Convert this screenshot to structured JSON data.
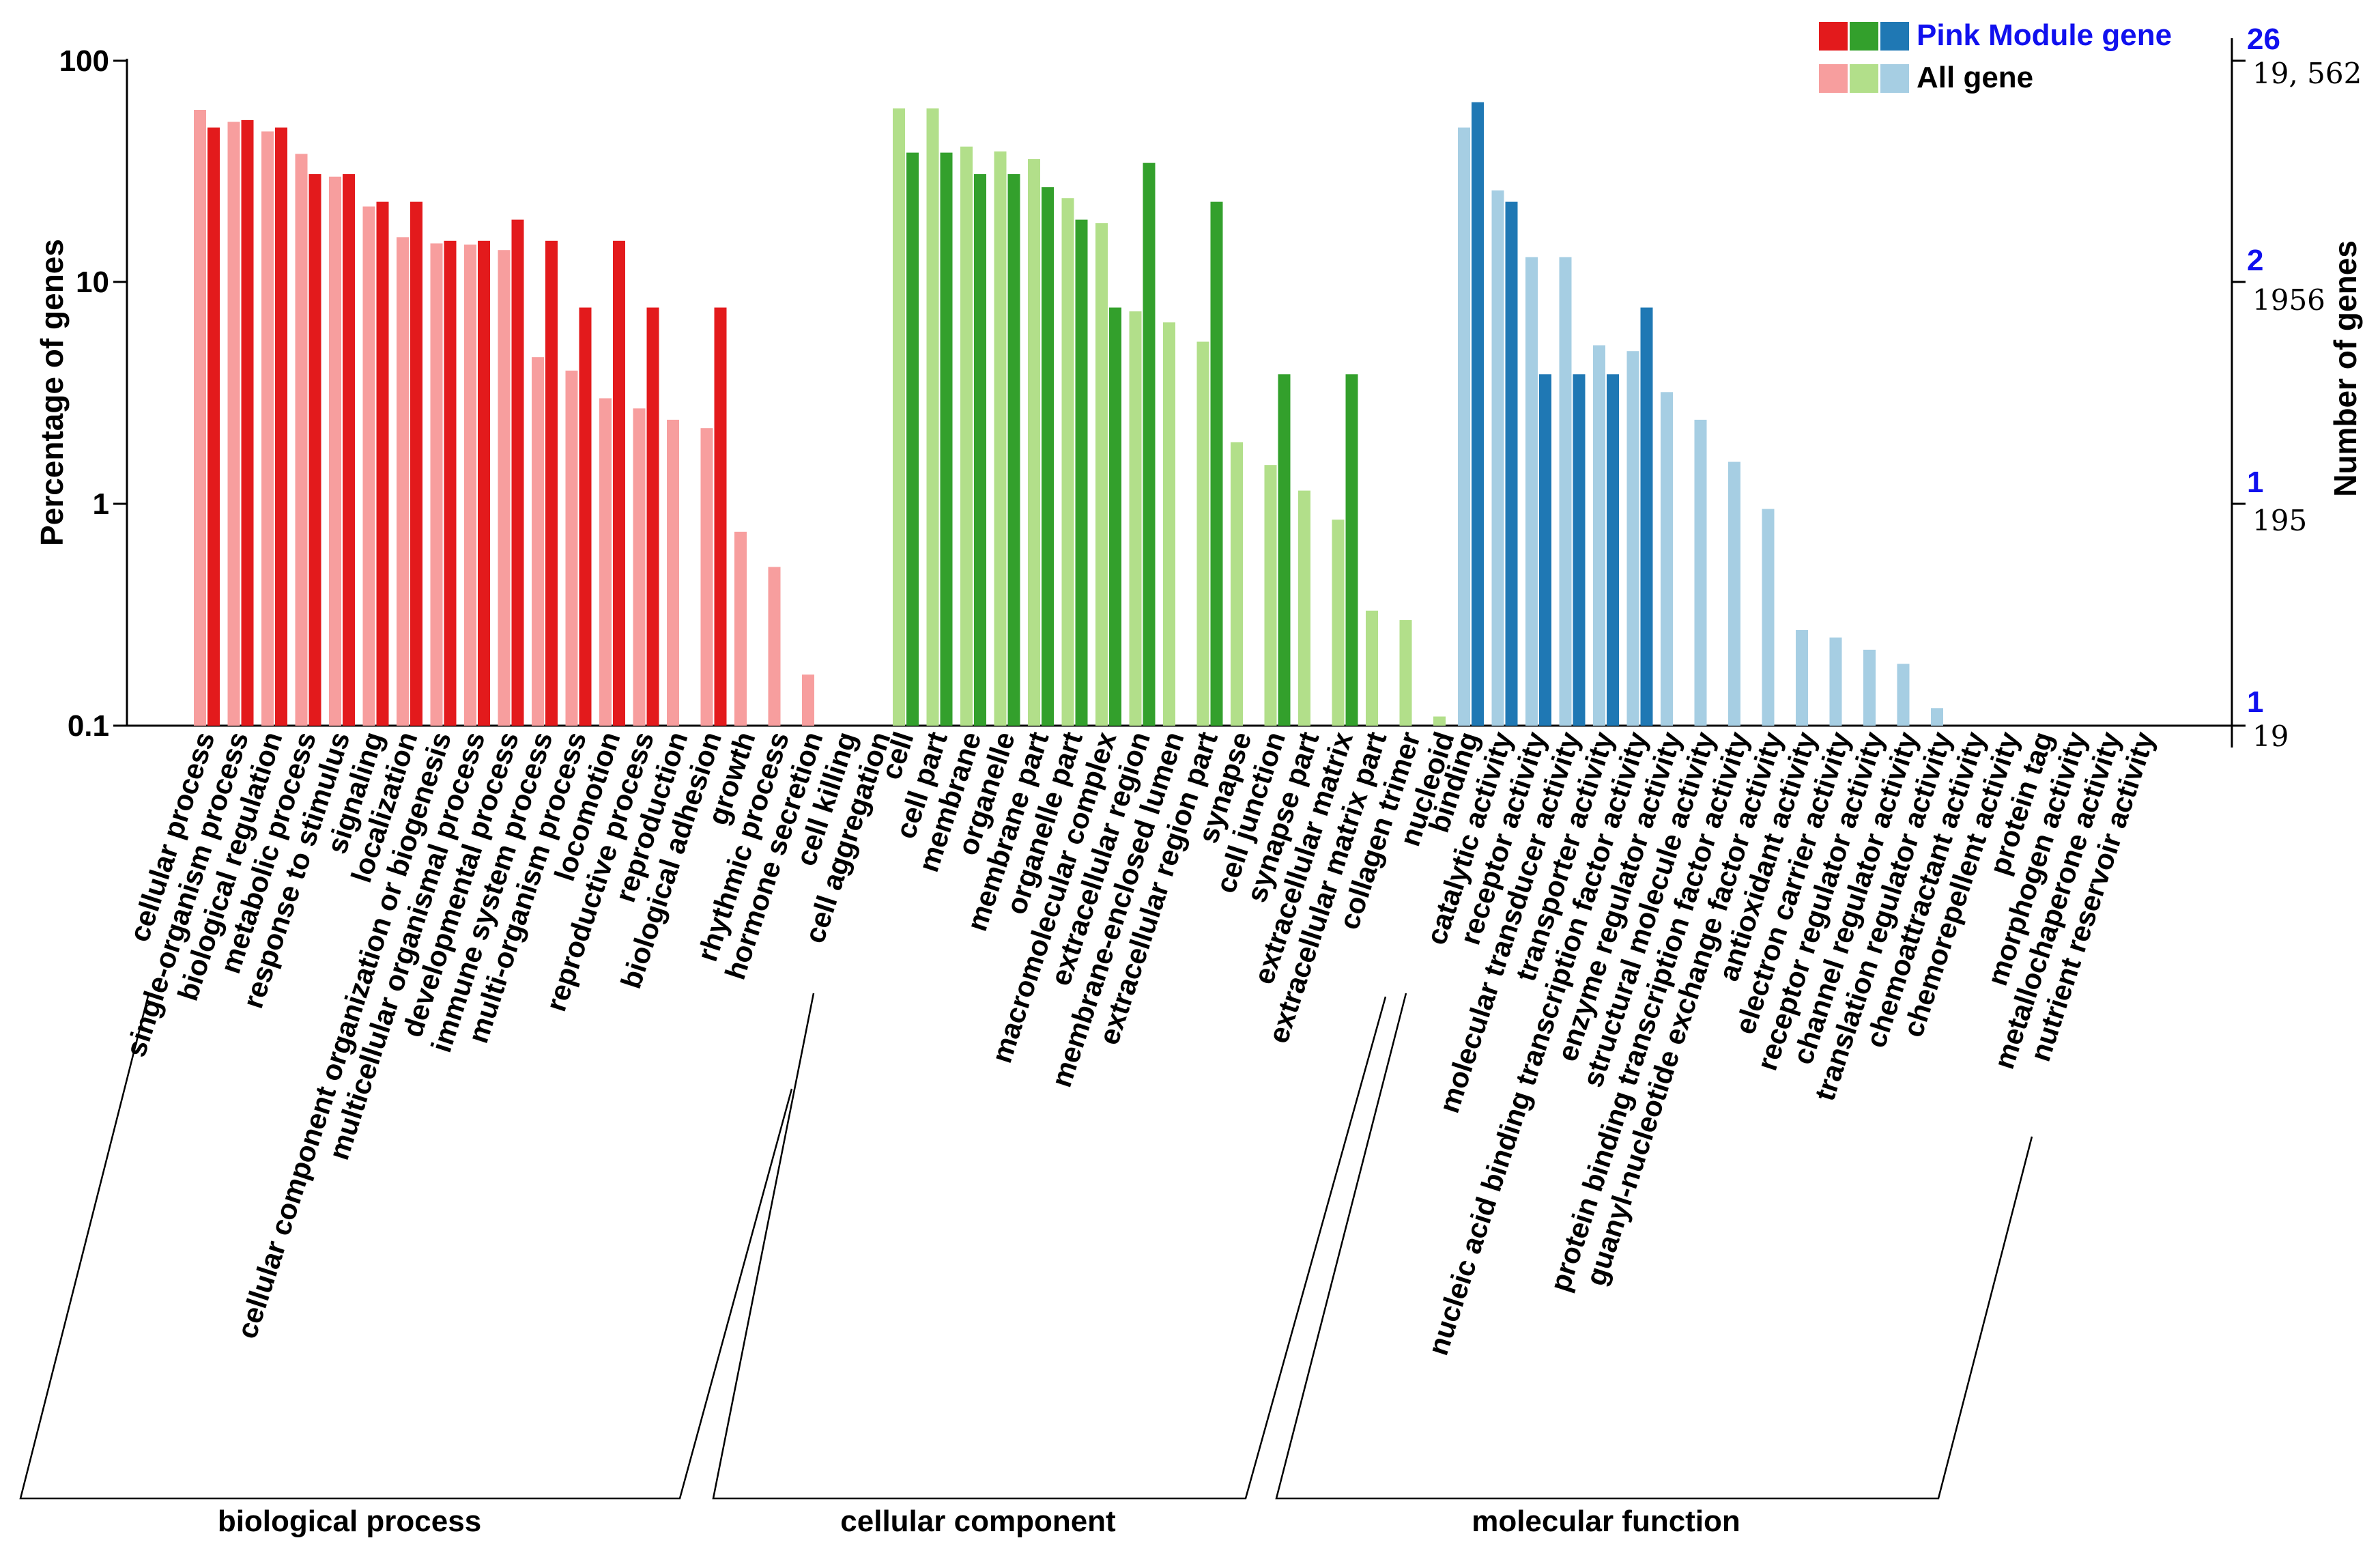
{
  "chart_data": {
    "type": "bar",
    "scale": "log",
    "ylabel": "Percentage of genes",
    "ylabel_right": "Number of genes",
    "ylim": [
      0.1,
      100
    ],
    "y_ticks": [
      "100",
      "10",
      "1",
      "0.1"
    ],
    "right_ticks": [
      {
        "count": "26",
        "total": "19, 562"
      },
      {
        "count": "2",
        "total": "1956"
      },
      {
        "count": "1",
        "total": "195"
      },
      {
        "count": "1",
        "total": "19"
      }
    ],
    "legend": {
      "module_label": "Pink Module gene",
      "all_label": "All gene"
    },
    "series_names": [
      "All gene",
      "Pink Module gene"
    ],
    "colors": {
      "biological process": {
        "all": "#f79e9e",
        "module": "#e31a1c"
      },
      "cellular component": {
        "all": "#b2df8a",
        "module": "#33a02c"
      },
      "molecular function": {
        "all": "#a6cee3",
        "module": "#1f78b4"
      },
      "legend_text": "#1010ee"
    },
    "groups": [
      {
        "name": "biological process",
        "categories": [
          "cellular process",
          "single-organism process",
          "biological regulation",
          "metabolic process",
          "response to stimulus",
          "signaling",
          "localization",
          "cellular component organization or biogenesis",
          "multicellular organismal process",
          "developmental process",
          "immune system process",
          "multi-organism process",
          "locomotion",
          "reproductive process",
          "reproduction",
          "biological adhesion",
          "growth",
          "rhythmic process",
          "hormone secretion",
          "cell killing",
          "cell aggregation"
        ],
        "all": [
          60,
          53,
          48,
          38,
          30,
          22,
          16,
          15,
          14.8,
          14,
          4.6,
          4.0,
          3.0,
          2.7,
          2.4,
          2.2,
          0.75,
          0.52,
          0.17,
          0.1,
          0.1
        ],
        "module": [
          50,
          54,
          50,
          30.8,
          30.8,
          23.1,
          23.1,
          15.4,
          15.4,
          19.2,
          15.4,
          7.7,
          15.4,
          7.7,
          0.1,
          7.7,
          0.1,
          0.1,
          0.1,
          0.1,
          0.1
        ]
      },
      {
        "name": "cellular component",
        "categories": [
          "cell",
          "cell part",
          "membrane",
          "organelle",
          "membrane part",
          "organelle part",
          "macromolecular complex",
          "extracellular region",
          "membrane-enclosed lumen",
          "extracellular region part",
          "synapse",
          "cell junction",
          "synapse part",
          "extracellular matrix",
          "extracellular matrix part",
          "collagen trimer",
          "nucleoid"
        ],
        "all": [
          61,
          61,
          41,
          39,
          36,
          24,
          18.5,
          7.4,
          6.6,
          5.4,
          1.9,
          1.5,
          1.15,
          0.85,
          0.33,
          0.3,
          0.11
        ],
        "module": [
          38.5,
          38.5,
          30.8,
          30.8,
          26.9,
          19.2,
          7.7,
          34.6,
          0.1,
          23.1,
          0.1,
          3.85,
          0.1,
          3.85,
          0.1,
          0.1,
          0.1
        ]
      },
      {
        "name": "molecular function",
        "categories": [
          "binding",
          "catalytic activity",
          "receptor activity",
          "molecular transducer activity",
          "transporter activity",
          "nucleic acid binding transcription factor activity",
          "enzyme regulator activity",
          "structural molecule activity",
          "protein binding transcription factor activity",
          "guanyl-nucleotide exchange factor activity",
          "antioxidant activity",
          "electron carrier activity",
          "receptor regulator activity",
          "channel regulator activity",
          "translation regulator activity",
          "chemoattractant activity",
          "chemorepellent activity",
          "protein tag",
          "morphogen activity",
          "metallochaperone activity",
          "nutrient reservoir activity"
        ],
        "all": [
          50,
          26,
          13,
          13,
          5.2,
          4.9,
          3.2,
          2.4,
          1.55,
          0.95,
          0.27,
          0.25,
          0.22,
          0.19,
          0.12,
          0.1,
          0.1,
          0.1,
          0.1,
          0.1,
          0.1
        ],
        "module": [
          65,
          23.1,
          3.85,
          3.85,
          3.85,
          7.7,
          0.1,
          0.1,
          0.1,
          0.1,
          0.1,
          0.1,
          0.1,
          0.1,
          0.1,
          0.1,
          0.1,
          0.1,
          0.1,
          0.1,
          0.1
        ]
      }
    ]
  }
}
